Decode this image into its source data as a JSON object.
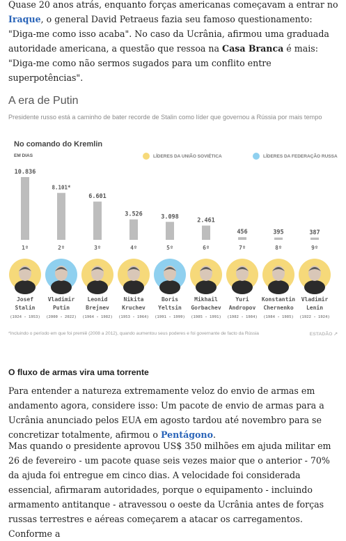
{
  "intro": {
    "p1_parts": [
      "Quase 20 anos atrás, enquanto forças americanas começavam a entrar no ",
      "Iraque",
      ", o general David Petraeus fazia seu famoso questionamento: \"Diga-me como isso acaba\". No caso da Ucrânia, afirmou uma graduada autoridade americana, a questão que ressoa na ",
      "Casa Branca",
      " é mais: \"Diga-me como não sermos sugados para um conflito entre superpotências\"."
    ]
  },
  "graphic": {
    "title": "A era de Putin",
    "subtitle": "Presidente russo está a caminho de bater recorde de Stalin como líder que governou a Rússia por mais tempo",
    "footnote": "*Incluindo o período em que foi premiê (2008 a 2012), quando aumentou seus poderes e foi governante de facto da Rússia",
    "credit": "ESTADÃO",
    "soviet_color": "#f6d97a",
    "federation_color": "#8fd0ef",
    "bar_color": "#bdbdbd"
  },
  "chart_data": {
    "type": "bar",
    "title": "No comando do Kremlin",
    "unit_label": "EM DIAS",
    "legend": [
      {
        "label": "LÍDERES DA UNIÃO SOVIÉTICA",
        "color": "#f6d97a"
      },
      {
        "label": "LÍDERES DA FEDERAÇÃO RUSSA",
        "color": "#8fd0ef"
      }
    ],
    "ylim": [
      0,
      11000
    ],
    "categories": [
      "Josef Stalin",
      "Vladimir Putin",
      "Leonid Brejnev",
      "Nikita Kruchev",
      "Boris Yeltsin",
      "Mikhail Gorbachev",
      "Yuri Andropov",
      "Konstantin Chernenko",
      "Vladimir Lenin"
    ],
    "values": [
      10.836,
      8.101,
      6.601,
      3.526,
      3.098,
      2.461,
      456,
      395,
      387
    ],
    "value_labels": [
      "10.836",
      "8.101*",
      "6.601",
      "3.526",
      "3.098",
      "2.461",
      "456",
      "395",
      "387"
    ],
    "bar_days": [
      10836,
      8101,
      6601,
      3526,
      3098,
      2461,
      456,
      395,
      387
    ],
    "ranks": [
      "1º",
      "2º",
      "3º",
      "4º",
      "5º",
      "6º",
      "7º",
      "8º",
      "9º"
    ],
    "first_names": [
      "Josef",
      "Vladimir",
      "Leonid",
      "Nikita",
      "Boris",
      "Mikhail",
      "Yuri",
      "Konstantin",
      "Vladimir"
    ],
    "last_names": [
      "Stalin",
      "Putin",
      "Brejnev",
      "Kruchev",
      "Yeltsin",
      "Gorbachev",
      "Andropov",
      "Chernenko",
      "Lenin"
    ],
    "periods": [
      "(1924 - 1953)",
      "(2000 - 2022)",
      "(1964 - 1982)",
      "(1953 - 1964)",
      "(1991 - 1999)",
      "(1985 - 1991)",
      "(1982 - 1984)",
      "(1984 - 1985)",
      "(1922 - 1924)"
    ],
    "era": [
      "soviet",
      "federation",
      "soviet",
      "soviet",
      "federation",
      "soviet",
      "soviet",
      "soviet",
      "soviet"
    ]
  },
  "section": {
    "heading": "O fluxo de armas vira uma torrente",
    "p2_parts": [
      "Para entender a natureza extremamente veloz do envio de armas em andamento agora, considere isso: Um pacote de envio de armas para a Ucrânia anunciado pelos EUA em agosto tardou até novembro para se concretizar totalmente, afirmou o ",
      "Pentágono",
      "."
    ],
    "p3": "Mas quando o presidente aprovou US$ 350 milhões em ajuda militar em 26 de fevereiro - um pacote quase seis vezes maior que o anterior - 70% da ajuda foi entregue em cinco dias. A velocidade foi considerada essencial, afirmaram autoridades, porque o equipamento - incluindo armamento antitanque - atravessou o oeste da Ucrânia antes de forças russas terrestres e aéreas começarem a atacar os carregamentos. Conforme a"
  }
}
